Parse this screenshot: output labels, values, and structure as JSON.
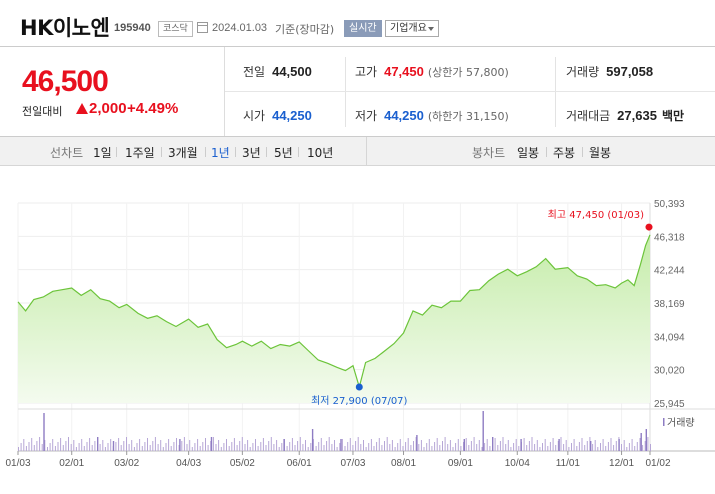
{
  "header": {
    "name": "HK이노엔",
    "code": "195940",
    "market": "코스닥",
    "date": "2024.01.03",
    "basis": "기준(장마감)",
    "realtime": "실시간",
    "overview": "기업개요"
  },
  "price": {
    "current": "46,500",
    "change_label": "전일대비",
    "change": "2,000",
    "change_pct": "+4.49%",
    "direction": "up"
  },
  "stats": {
    "prev_label": "전일",
    "prev": "44,500",
    "high_label": "고가",
    "high": "47,450",
    "upper_limit": "(상한가 57,800)",
    "volume_label": "거래량",
    "volume": "597,058",
    "open_label": "시가",
    "open": "44,250",
    "low_label": "저가",
    "low": "44,250",
    "lower_limit": "(하한가 31,150)",
    "value_label": "거래대금",
    "value": "27,635",
    "value_unit": "백만"
  },
  "tabs": {
    "line_label": "선차트",
    "line_periods": [
      "1일",
      "1주일",
      "3개월",
      "1년",
      "3년",
      "5년",
      "10년"
    ],
    "line_selected": "1년",
    "candle_label": "봉차트",
    "candle_periods": [
      "일봉",
      "주봉",
      "월봉"
    ]
  },
  "colors": {
    "up": "#e8101e",
    "down": "#1a5fcf",
    "area": "#c5eca9",
    "line": "#6cc43a"
  },
  "chart_data": {
    "type": "area",
    "ylim": [
      25945,
      50393
    ],
    "y_ticks": [
      "50,393",
      "46,318",
      "42,244",
      "38,169",
      "34,094",
      "30,020",
      "25,945"
    ],
    "x_ticks": [
      "01/03",
      "02/01",
      "03/02",
      "04/03",
      "05/02",
      "06/01",
      "07/03",
      "08/01",
      "09/01",
      "10/04",
      "11/01",
      "12/01",
      "01/02"
    ],
    "x_positions": [
      0,
      0.085,
      0.172,
      0.27,
      0.355,
      0.445,
      0.53,
      0.61,
      0.7,
      0.79,
      0.87,
      0.955,
      1.0
    ],
    "series": [
      {
        "points": [
          [
            0.0,
            38300
          ],
          [
            0.012,
            37200
          ],
          [
            0.025,
            38600
          ],
          [
            0.04,
            38900
          ],
          [
            0.055,
            39600
          ],
          [
            0.07,
            39800
          ],
          [
            0.085,
            40000
          ],
          [
            0.1,
            39100
          ],
          [
            0.115,
            39800
          ],
          [
            0.13,
            38700
          ],
          [
            0.145,
            38400
          ],
          [
            0.16,
            37600
          ],
          [
            0.172,
            38000
          ],
          [
            0.19,
            36900
          ],
          [
            0.205,
            36300
          ],
          [
            0.22,
            36600
          ],
          [
            0.235,
            35900
          ],
          [
            0.25,
            35300
          ],
          [
            0.27,
            36200
          ],
          [
            0.285,
            35200
          ],
          [
            0.3,
            35600
          ],
          [
            0.315,
            33700
          ],
          [
            0.33,
            32700
          ],
          [
            0.345,
            33100
          ],
          [
            0.355,
            33500
          ],
          [
            0.37,
            32900
          ],
          [
            0.385,
            33500
          ],
          [
            0.4,
            32600
          ],
          [
            0.415,
            33100
          ],
          [
            0.43,
            32900
          ],
          [
            0.445,
            33400
          ],
          [
            0.46,
            32300
          ],
          [
            0.475,
            31200
          ],
          [
            0.49,
            30800
          ],
          [
            0.505,
            30300
          ],
          [
            0.518,
            29900
          ],
          [
            0.53,
            30500
          ],
          [
            0.54,
            27900
          ],
          [
            0.55,
            30900
          ],
          [
            0.565,
            31400
          ],
          [
            0.58,
            32300
          ],
          [
            0.595,
            33200
          ],
          [
            0.61,
            34500
          ],
          [
            0.625,
            37200
          ],
          [
            0.64,
            36700
          ],
          [
            0.655,
            37900
          ],
          [
            0.67,
            37600
          ],
          [
            0.685,
            38400
          ],
          [
            0.7,
            38400
          ],
          [
            0.715,
            39700
          ],
          [
            0.73,
            39800
          ],
          [
            0.745,
            40900
          ],
          [
            0.76,
            41700
          ],
          [
            0.775,
            42300
          ],
          [
            0.79,
            41500
          ],
          [
            0.805,
            42000
          ],
          [
            0.82,
            42600
          ],
          [
            0.835,
            43600
          ],
          [
            0.85,
            42300
          ],
          [
            0.87,
            42500
          ],
          [
            0.885,
            41500
          ],
          [
            0.9,
            41100
          ],
          [
            0.915,
            40300
          ],
          [
            0.93,
            40400
          ],
          [
            0.945,
            40000
          ],
          [
            0.955,
            40600
          ],
          [
            0.965,
            41000
          ],
          [
            0.975,
            40300
          ],
          [
            0.985,
            42900
          ],
          [
            0.993,
            45200
          ],
          [
            1.0,
            46500
          ]
        ]
      }
    ],
    "high": {
      "label": "최고 47,450 (01/03)",
      "value": 47450,
      "x": 1.0
    },
    "low": {
      "label": "최저 27,900 (07/07)",
      "value": 27900,
      "x": 0.54
    },
    "volume_label": "거래량",
    "volume_bars": [
      [
        0.04,
        0.95
      ],
      [
        0.125,
        0.35
      ],
      [
        0.15,
        0.25
      ],
      [
        0.255,
        0.3
      ],
      [
        0.305,
        0.35
      ],
      [
        0.42,
        0.3
      ],
      [
        0.465,
        0.55
      ],
      [
        0.51,
        0.3
      ],
      [
        0.63,
        0.4
      ],
      [
        0.705,
        0.3
      ],
      [
        0.735,
        1.0
      ],
      [
        0.75,
        0.35
      ],
      [
        0.795,
        0.3
      ],
      [
        0.855,
        0.3
      ],
      [
        0.905,
        0.25
      ],
      [
        0.95,
        0.3
      ],
      [
        0.985,
        0.45
      ],
      [
        0.993,
        0.55
      ]
    ]
  }
}
